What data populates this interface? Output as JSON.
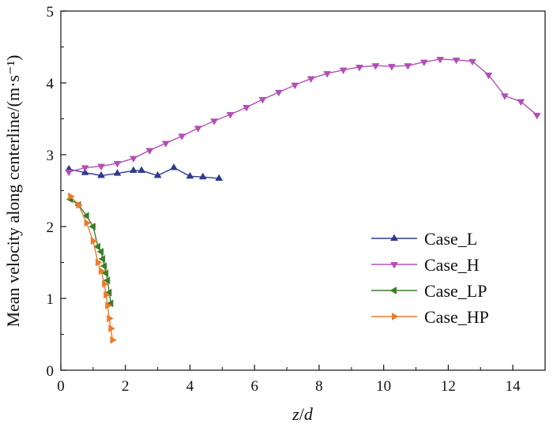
{
  "chart_data": {
    "type": "line",
    "title": "",
    "xlabel_parts": {
      "a": "z",
      "sep": "/",
      "b": "d"
    },
    "ylabel": "Mean velocity along centerline/(m·s⁻¹)",
    "xlim": [
      0,
      15
    ],
    "ylim": [
      0,
      5
    ],
    "xticks": [
      "0",
      "2",
      "4",
      "6",
      "8",
      "10",
      "12",
      "14"
    ],
    "xtick_values": [
      0,
      2,
      4,
      6,
      8,
      10,
      12,
      14
    ],
    "yticks": [
      "0",
      "1",
      "2",
      "3",
      "4",
      "5"
    ],
    "ytick_values": [
      0,
      1,
      2,
      3,
      4,
      5
    ],
    "grid": false,
    "legend_position": "right-middle",
    "series": [
      {
        "name": "Case_L",
        "color": "#2e3a8c",
        "marker": "triangle-up",
        "x": [
          0.25,
          0.75,
          1.25,
          1.75,
          2.25,
          2.5,
          3.0,
          3.5,
          4.0,
          4.4,
          4.9
        ],
        "y": [
          2.8,
          2.75,
          2.71,
          2.74,
          2.78,
          2.78,
          2.71,
          2.82,
          2.7,
          2.69,
          2.67
        ]
      },
      {
        "name": "Case_H",
        "color": "#b24fb6",
        "marker": "triangle-down",
        "x": [
          0.25,
          0.75,
          1.25,
          1.75,
          2.25,
          2.75,
          3.25,
          3.75,
          4.25,
          4.75,
          5.25,
          5.75,
          6.25,
          6.75,
          7.25,
          7.75,
          8.25,
          8.75,
          9.25,
          9.75,
          10.25,
          10.75,
          11.25,
          11.75,
          12.25,
          12.75,
          13.25,
          13.75,
          14.25,
          14.75
        ],
        "y": [
          2.76,
          2.82,
          2.84,
          2.88,
          2.95,
          3.06,
          3.16,
          3.26,
          3.37,
          3.47,
          3.56,
          3.66,
          3.77,
          3.87,
          3.97,
          4.06,
          4.13,
          4.18,
          4.22,
          4.24,
          4.23,
          4.24,
          4.29,
          4.33,
          4.32,
          4.3,
          4.11,
          3.82,
          3.74,
          3.55
        ]
      },
      {
        "name": "Case_LP",
        "color": "#3b7d2a",
        "marker": "triangle-left",
        "x": [
          0.3,
          0.55,
          0.8,
          1.0,
          1.15,
          1.25,
          1.3,
          1.35,
          1.4,
          1.45,
          1.5,
          1.55
        ],
        "y": [
          2.38,
          2.3,
          2.15,
          2.0,
          1.72,
          1.65,
          1.55,
          1.45,
          1.35,
          1.25,
          1.08,
          0.93
        ]
      },
      {
        "name": "Case_HP",
        "color": "#f07a2a",
        "marker": "triangle-right",
        "x": [
          0.3,
          0.55,
          0.8,
          1.0,
          1.15,
          1.25,
          1.35,
          1.4,
          1.45,
          1.5,
          1.55,
          1.6
        ],
        "y": [
          2.42,
          2.3,
          2.05,
          1.8,
          1.5,
          1.38,
          1.2,
          1.05,
          0.9,
          0.72,
          0.58,
          0.42
        ]
      }
    ]
  }
}
